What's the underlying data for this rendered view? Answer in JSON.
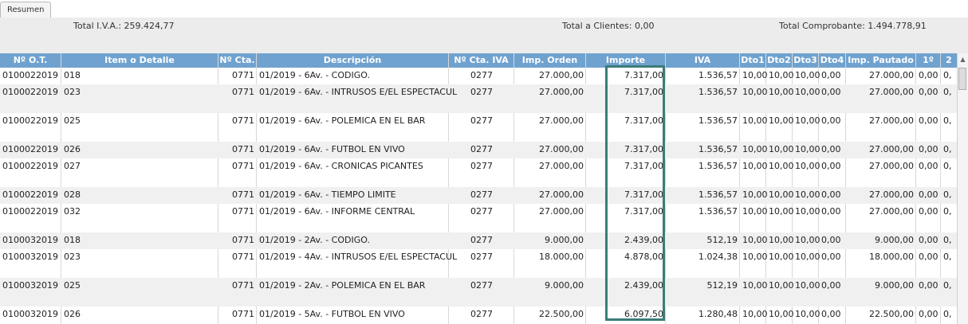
{
  "tab": {
    "label": "Resumen"
  },
  "summary": {
    "total_iva": "Total I.V.A.: 259.424,77",
    "total_clientes": "Total a Clientes: 0,00",
    "total_comprobante": "Total Comprobante: 1.494.778,91"
  },
  "columns": [
    "Nº O.T.",
    "Item o Detalle",
    "Nº Cta.",
    "Descripción",
    "Nº Cta. IVA",
    "Imp. Orden",
    "Importe",
    "IVA",
    "Dto1",
    "Dto2",
    "Dto3",
    "Dto4",
    "Imp. Pautado",
    "1º",
    "2"
  ],
  "rows": [
    [
      "0100022019",
      "018",
      "0771",
      "01/2019 - 6Av. - CODIGO.",
      "0277",
      "27.000,00",
      "7.317,00",
      "1.536,57",
      "10,00",
      "10,00",
      "10,00",
      "0,00",
      "27.000,00",
      "0,00",
      "0,"
    ],
    [
      "0100022019",
      "023",
      "0771",
      "01/2019 - 6Av. - INTRUSOS E/EL ESPECTACUL",
      "0277",
      "27.000,00",
      "7.317,00",
      "1.536,57",
      "10,00",
      "10,00",
      "10,00",
      "0,00",
      "27.000,00",
      "0,00",
      "0,"
    ],
    [
      "0100022019",
      "025",
      "0771",
      "01/2019 - 6Av. - POLEMICA EN EL BAR",
      "0277",
      "27.000,00",
      "7.317,00",
      "1.536,57",
      "10,00",
      "10,00",
      "10,00",
      "0,00",
      "27.000,00",
      "0,00",
      "0,"
    ],
    [
      "0100022019",
      "026",
      "0771",
      "01/2019 - 6Av. - FUTBOL EN VIVO",
      "0277",
      "27.000,00",
      "7.317,00",
      "1.536,57",
      "10,00",
      "10,00",
      "10,00",
      "0,00",
      "27.000,00",
      "0,00",
      "0,"
    ],
    [
      "0100022019",
      "027",
      "0771",
      "01/2019 - 6Av. - CRONICAS PICANTES",
      "0277",
      "27.000,00",
      "7.317,00",
      "1.536,57",
      "10,00",
      "10,00",
      "10,00",
      "0,00",
      "27.000,00",
      "0,00",
      "0,"
    ],
    [
      "0100022019",
      "028",
      "0771",
      "01/2019 - 6Av. - TIEMPO LIMITE",
      "0277",
      "27.000,00",
      "7.317,00",
      "1.536,57",
      "10,00",
      "10,00",
      "10,00",
      "0,00",
      "27.000,00",
      "0,00",
      "0,"
    ],
    [
      "0100022019",
      "032",
      "0771",
      "01/2019 - 6Av. - INFORME CENTRAL",
      "0277",
      "27.000,00",
      "7.317,00",
      "1.536,57",
      "10,00",
      "10,00",
      "10,00",
      "0,00",
      "27.000,00",
      "0,00",
      "0,"
    ],
    [
      "0100032019",
      "018",
      "0771",
      "01/2019 - 2Av. - CODIGO.",
      "0277",
      "9.000,00",
      "2.439,00",
      "512,19",
      "10,00",
      "10,00",
      "10,00",
      "0,00",
      "9.000,00",
      "0,00",
      "0,"
    ],
    [
      "0100032019",
      "023",
      "0771",
      "01/2019 - 4Av. - INTRUSOS E/EL ESPECTACUL",
      "0277",
      "18.000,00",
      "4.878,00",
      "1.024,38",
      "10,00",
      "10,00",
      "10,00",
      "0,00",
      "18.000,00",
      "0,00",
      "0,"
    ],
    [
      "0100032019",
      "025",
      "0771",
      "01/2019 - 2Av. - POLEMICA EN EL BAR",
      "0277",
      "9.000,00",
      "2.439,00",
      "512,19",
      "10,00",
      "10,00",
      "10,00",
      "0,00",
      "9.000,00",
      "0,00",
      "0,"
    ],
    [
      "0100032019",
      "026",
      "0771",
      "01/2019 - 5Av. - FUTBOL EN VIVO",
      "0277",
      "22.500,00",
      "6.097,50",
      "1.280,48",
      "10,00",
      "10,00",
      "10,00",
      "0,00",
      "22.500,00",
      "0,00",
      "0,"
    ]
  ]
}
